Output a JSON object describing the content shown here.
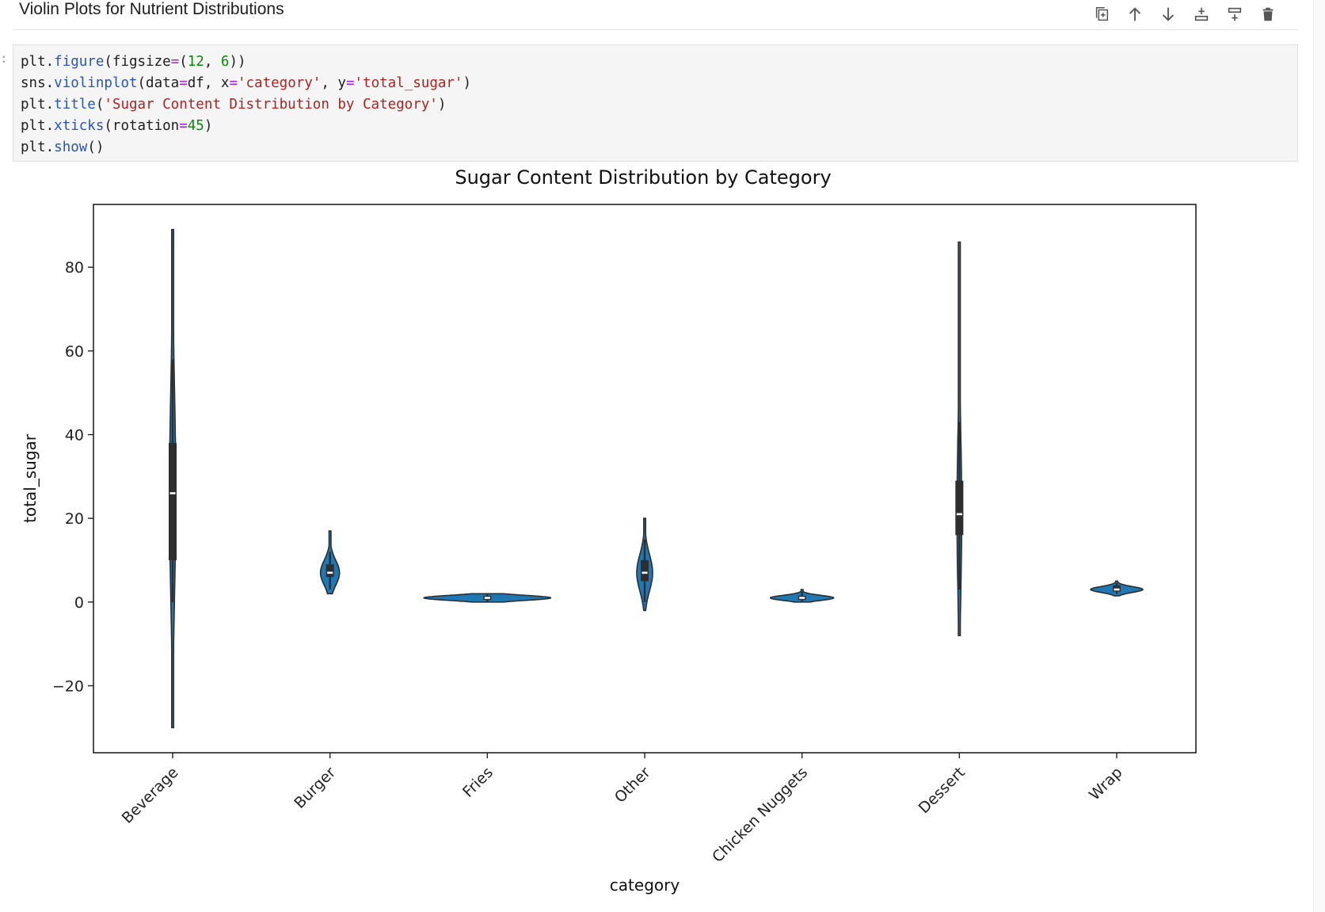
{
  "markdown_cell": {
    "title": "Violin Plots for Nutrient Distributions"
  },
  "toolbar": {
    "buttons": [
      {
        "name": "copy-cell-icon"
      },
      {
        "name": "arrow-up-icon"
      },
      {
        "name": "arrow-down-icon"
      },
      {
        "name": "insert-above-icon"
      },
      {
        "name": "insert-below-icon"
      },
      {
        "name": "trash-icon"
      }
    ]
  },
  "code_cell": {
    "prompt": ":",
    "lines": [
      "plt.figure(figsize=(12, 6))",
      "sns.violinplot(data=df, x='category', y='total_sugar')",
      "plt.title('Sugar Content Distribution by Category')",
      "plt.xticks(rotation=45)",
      "plt.show()"
    ]
  },
  "chart_data": {
    "type": "violin",
    "title": "Sugar Content Distribution by Category",
    "xlabel": "category",
    "ylabel": "total_sugar",
    "ylim": [
      -36,
      95
    ],
    "yticks": [
      -20,
      0,
      20,
      40,
      60,
      80
    ],
    "ytick_labels": [
      "−20",
      "0",
      "20",
      "40",
      "60",
      "80"
    ],
    "categories": [
      "Beverage",
      "Burger",
      "Fries",
      "Other",
      "Chicken Nuggets",
      "Dessert",
      "Wrap"
    ],
    "series": [
      {
        "category": "Beverage",
        "min": -30,
        "max": 89,
        "q1": 10,
        "median": 26,
        "q3": 38,
        "whisker_low": 0,
        "whisker_high": 58
      },
      {
        "category": "Burger",
        "min": 2,
        "max": 17,
        "q1": 6,
        "median": 7,
        "q3": 9,
        "whisker_low": 3,
        "whisker_high": 12
      },
      {
        "category": "Fries",
        "min": 0,
        "max": 2,
        "q1": 0.5,
        "median": 1,
        "q3": 1.5,
        "whisker_low": 0,
        "whisker_high": 2
      },
      {
        "category": "Other",
        "min": -2,
        "max": 20,
        "q1": 5,
        "median": 7,
        "q3": 10,
        "whisker_low": 0,
        "whisker_high": 15
      },
      {
        "category": "Chicken Nuggets",
        "min": 0,
        "max": 3,
        "q1": 0.5,
        "median": 1,
        "q3": 1.5,
        "whisker_low": 0,
        "whisker_high": 2.5
      },
      {
        "category": "Dessert",
        "min": -8,
        "max": 86,
        "q1": 16,
        "median": 21,
        "q3": 29,
        "whisker_low": 3,
        "whisker_high": 43
      },
      {
        "category": "Wrap",
        "min": 1.5,
        "max": 5,
        "q1": 2.5,
        "median": 3,
        "q3": 4,
        "whisker_low": 2,
        "whisker_high": 4.5
      }
    ],
    "fill_color": "#1f77b4",
    "edge_color": "#2e2e2e",
    "grid": false
  }
}
